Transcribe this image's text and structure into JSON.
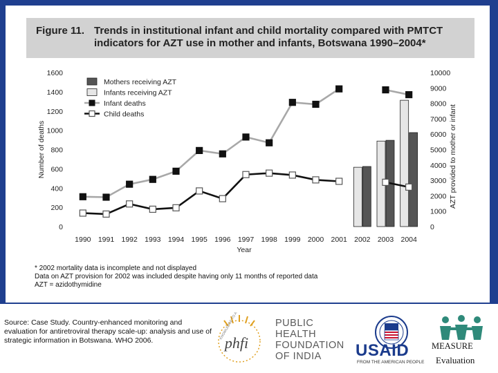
{
  "figure": {
    "label": "Figure 11.",
    "title_line1": "Trends in institutional infant and child mortality compared with PMTCT",
    "title_line2": "indicators for AZT use in mother and infants,  Botswana 1990–2004*"
  },
  "chart_data": {
    "type": "bar+line",
    "x": [
      "1990",
      "1991",
      "1992",
      "1993",
      "1994",
      "1995",
      "1996",
      "1997",
      "1998",
      "1999",
      "2000",
      "2001",
      "2002",
      "2003",
      "2004"
    ],
    "xlabel": "Year",
    "ylabel_left": "Number of deaths",
    "ylabel_right": "AZT provided to mother or infant",
    "ylim_left": [
      0,
      1600
    ],
    "ylim_right": [
      0,
      10000
    ],
    "yticks_left": [
      "0",
      "200",
      "400",
      "600",
      "800",
      "1000",
      "1200",
      "1400",
      "1600"
    ],
    "yticks_right": [
      "0",
      "1000",
      "2000",
      "3000",
      "4000",
      "5000",
      "6000",
      "7000",
      "8000",
      "9000",
      "10000"
    ],
    "legend": [
      {
        "name": "Mothers receiving AZT",
        "marker": "dark-bar"
      },
      {
        "name": "Infants receiving AZT",
        "marker": "light-bar"
      },
      {
        "name": "Infant deaths",
        "marker": "filled-square"
      },
      {
        "name": "Child deaths",
        "marker": "open-square"
      }
    ],
    "line_series": [
      {
        "name": "Infant deaths",
        "axis": "left",
        "values": [
          310,
          305,
          440,
          490,
          575,
          790,
          755,
          930,
          870,
          1290,
          1270,
          1430,
          null,
          1420,
          1370
        ]
      },
      {
        "name": "Child deaths",
        "axis": "left",
        "values": [
          140,
          130,
          235,
          180,
          195,
          370,
          290,
          540,
          555,
          535,
          485,
          470,
          null,
          460,
          410
        ]
      }
    ],
    "bar_series": [
      {
        "name": "Infants receiving AZT",
        "axis": "right",
        "values": [
          null,
          null,
          null,
          null,
          null,
          null,
          null,
          null,
          null,
          null,
          null,
          null,
          3850,
          5550,
          8200
        ]
      },
      {
        "name": "Mothers receiving AZT",
        "axis": "right",
        "values": [
          null,
          null,
          null,
          null,
          null,
          null,
          null,
          null,
          null,
          null,
          null,
          null,
          3900,
          5600,
          6100
        ]
      }
    ],
    "colors": {
      "infant_line": "#a8a8a8",
      "child_line": "#111111",
      "dark_bar": "#555555",
      "light_bar": "#e6e6e6"
    }
  },
  "notes": {
    "line1": "* 2002 mortality data is incomplete and not displayed",
    "line2": "Data on AZT provision for 2002 was included despite having only 11 months of reported data",
    "line3": "AZT = azidothymidine"
  },
  "source": "Source: Case Study. Country-enhanced monitoring and evaluation for antiretroviral therapy scale-up: analysis and use of strategic information in Botswana. WHO 2006.",
  "logos": {
    "phfi_ring_text": "KNOWLEDGE TO ACTION",
    "phfi_mark": "phfi",
    "phfi_line1": "PUBLIC",
    "phfi_line2": "HEALTH",
    "phfi_line3": "FOUNDATION",
    "phfi_line4": "OF INDIA",
    "usaid_name": "USAID",
    "usaid_tagline": "FROM THE AMERICAN PEOPLE",
    "measure_name": "MEASURE",
    "measure_sub": "Evaluation"
  }
}
